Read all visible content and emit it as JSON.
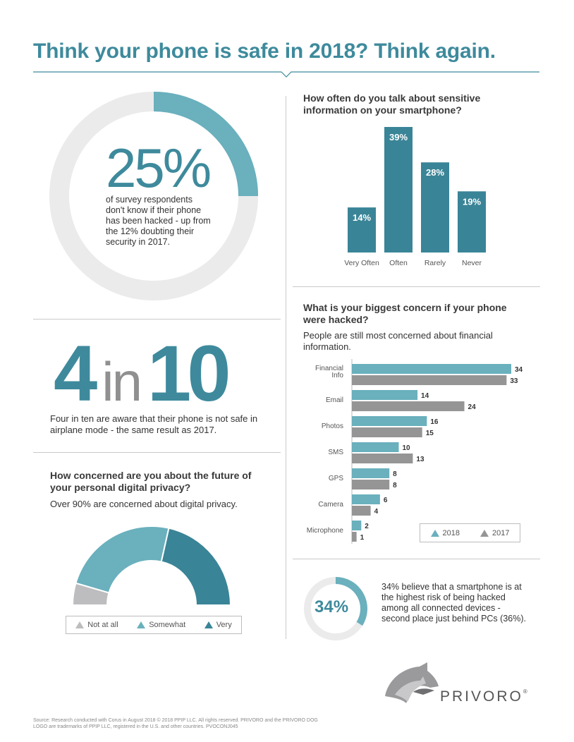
{
  "title": "Think your phone is safe in 2018? Think again.",
  "colors": {
    "teal_light": "#6ab0bd",
    "teal_dark": "#3a8497",
    "gray": "#959595",
    "ring_bg": "#ebebec",
    "title": "#3e8a9c"
  },
  "stat_25": {
    "value": "25%",
    "text": "of survey respondents don't know if their phone has been hacked - up from the 12% doubting their security in 2017.",
    "fraction": 0.25
  },
  "stat_4in10": {
    "n1": "4",
    "in": "in",
    "n2": "10",
    "text": "Four in ten are aware that their phone is not safe in airplane mode - the same result as 2017."
  },
  "privacy": {
    "question": "How concerned are you about the future of your personal digital privacy?",
    "subtitle": "Over 90% are concerned about digital privacy."
  },
  "talk": {
    "question": "How often do you talk about sensitive information on your smartphone?"
  },
  "concern": {
    "question": "What is your biggest concern if your phone were hacked?",
    "subtitle": "People are still most concerned about financial information."
  },
  "stat_34": {
    "value": "34%",
    "text": "34% believe that a smartphone is at the highest risk of being hacked among all connected devices - second place just behind PCs (36%).",
    "fraction": 0.34
  },
  "brand": {
    "name": "PRIVORO",
    "mark": "®"
  },
  "source": "Source: Research conducted with Corus in August 2018 © 2018 PPIP LLC. All rights reserved. PRIVORO and the PRIVORO DOG LOGO are trademarks of PPIP LLC, registered in the U.S. and other countries. PVOCONJ045",
  "chart_data": [
    {
      "type": "bar",
      "title": "How often do you talk about sensitive information on your smartphone?",
      "categories": [
        "Very Often",
        "Often",
        "Rarely",
        "Never"
      ],
      "values": [
        14,
        39,
        28,
        19
      ],
      "labels": [
        "14%",
        "39%",
        "28%",
        "19%"
      ],
      "ylim": [
        0,
        39
      ],
      "xlabel": "",
      "ylabel": ""
    },
    {
      "type": "bar",
      "orientation": "horizontal",
      "title": "What is your biggest concern if your phone were hacked?",
      "categories": [
        "Financial Info",
        "Email",
        "Photos",
        "SMS",
        "GPS",
        "Camera",
        "Microphone"
      ],
      "series": [
        {
          "name": "2018",
          "values": [
            34,
            14,
            16,
            10,
            8,
            6,
            2
          ]
        },
        {
          "name": "2017",
          "values": [
            33,
            24,
            15,
            13,
            8,
            4,
            1
          ]
        }
      ],
      "xlim": [
        0,
        34
      ],
      "legend": "bottom-right"
    },
    {
      "type": "pie",
      "style": "semi-donut",
      "title": "How concerned are you about the future of your personal digital privacy?",
      "categories": [
        "Not at all",
        "Somewhat",
        "Very"
      ],
      "values": [
        9,
        48,
        43
      ],
      "legend": "bottom"
    }
  ]
}
